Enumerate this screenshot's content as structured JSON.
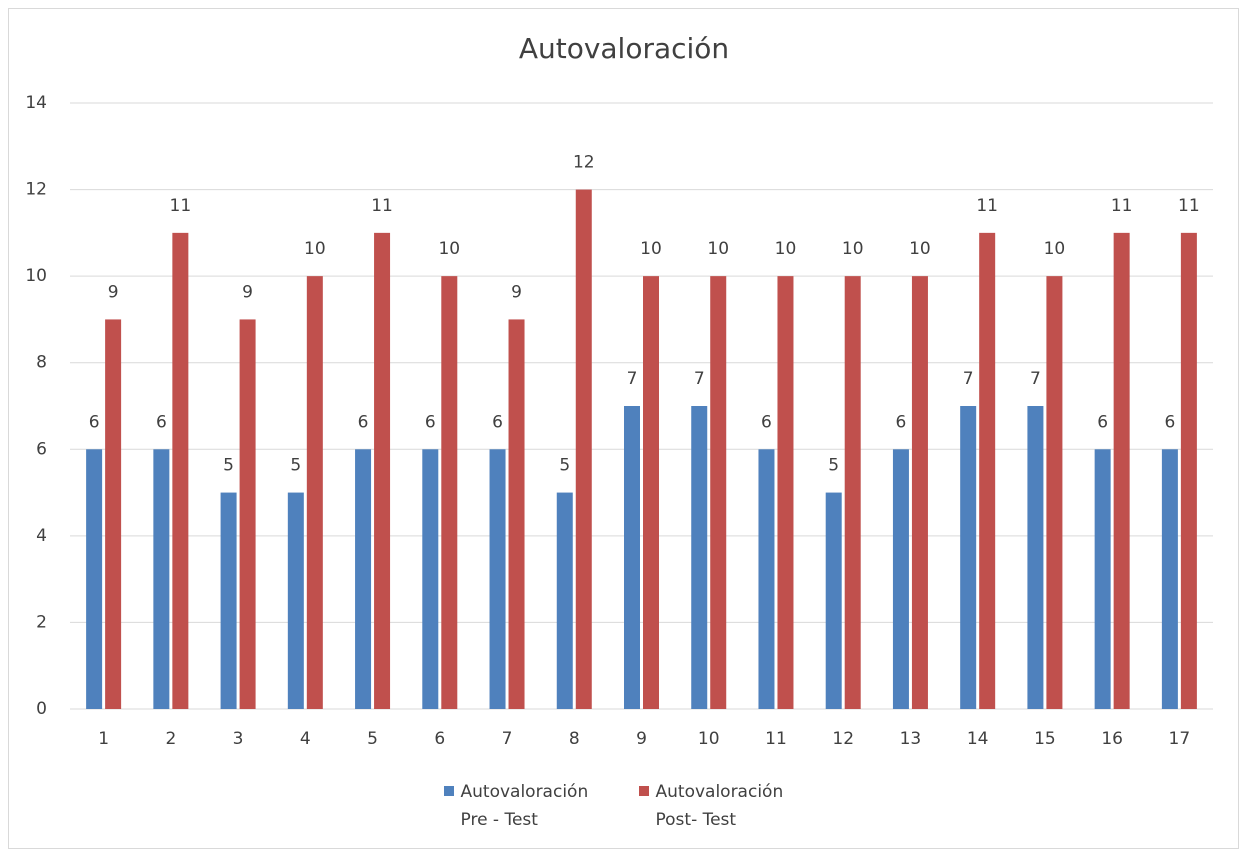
{
  "chart_data": {
    "type": "bar",
    "title": "Autovaloración",
    "categories": [
      "1",
      "2",
      "3",
      "4",
      "5",
      "6",
      "7",
      "8",
      "9",
      "10",
      "11",
      "12",
      "13",
      "14",
      "15",
      "16",
      "17"
    ],
    "series": [
      {
        "name": "Autovaloración Pre - Test",
        "color": "#4f81bd",
        "values": [
          6,
          6,
          5,
          5,
          6,
          6,
          6,
          5,
          7,
          7,
          6,
          5,
          6,
          7,
          7,
          6,
          6
        ]
      },
      {
        "name": "Autovaloración Post- Test",
        "color": "#c0504d",
        "values": [
          9,
          11,
          9,
          10,
          11,
          10,
          9,
          12,
          10,
          10,
          10,
          10,
          10,
          11,
          10,
          11,
          11
        ]
      }
    ],
    "ylim": [
      0,
      14
    ],
    "yticks": [
      0,
      2,
      4,
      6,
      8,
      10,
      12,
      14
    ],
    "grid": true,
    "legend": "bottom"
  }
}
